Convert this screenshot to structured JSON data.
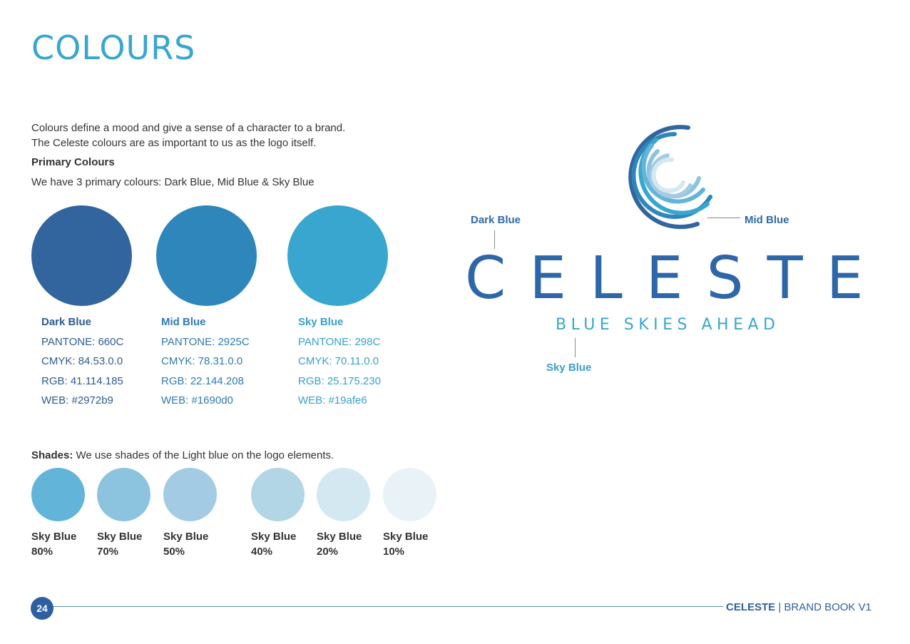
{
  "page": {
    "title": "COLOURS",
    "intro_line1": "Colours define a mood and give a sense of a character to a brand.",
    "intro_line2": "The Celeste colours are as important to us as the logo itself.",
    "primary_heading": "Primary Colours",
    "primary_desc": "We have 3 primary colours: Dark Blue, Mid Blue & Sky Blue"
  },
  "primary_colours": [
    {
      "name": "Dark Blue",
      "pantone": "PANTONE: 660C",
      "cmyk": "CMYK: 84.53.0.0",
      "rgb": "RGB: 41.114.185",
      "web": "WEB: #2972b9",
      "swatch": "#32649e",
      "label_color": "#2e5a92"
    },
    {
      "name": "Mid Blue",
      "pantone": "PANTONE: 2925C",
      "cmyk": "CMYK: 78.31.0.0",
      "rgb": "RGB: 22.144.208",
      "web": "WEB: #1690d0",
      "swatch": "#2e86bb",
      "label_color": "#2f7ab3"
    },
    {
      "name": "Sky Blue",
      "pantone": "PANTONE: 298C",
      "cmyk": "CMYK: 70.11.0.0",
      "rgb": "RGB: 25.175.230",
      "web": "WEB: #19afe6",
      "swatch": "#38a6cf",
      "label_color": "#38a0cc"
    }
  ],
  "shades": {
    "heading": "Shades:",
    "desc": " We use shades of the Light blue on the logo elements.",
    "items": [
      {
        "name": "Sky Blue",
        "pct": "80%",
        "color": "#63b4d9"
      },
      {
        "name": "Sky Blue",
        "pct": "70%",
        "color": "#8cc4df"
      },
      {
        "name": "Sky Blue",
        "pct": "50%",
        "color": "#a3cbe3"
      },
      {
        "name": "Sky Blue",
        "pct": "40%",
        "color": "#b3d6e6"
      },
      {
        "name": "Sky Blue",
        "pct": "20%",
        "color": "#d4e8f1"
      },
      {
        "name": "Sky Blue",
        "pct": "10%",
        "color": "#e9f2f6"
      }
    ]
  },
  "logo": {
    "wordmark": "CELESTE",
    "tagline": "BLUE SKIES AHEAD",
    "callout_dark": "Dark Blue",
    "callout_mid": "Mid Blue",
    "callout_sky": "Sky Blue"
  },
  "footer": {
    "page_number": "24",
    "brand": "CELESTE",
    "separator": " | ",
    "book": "BRAND BOOK V1"
  }
}
